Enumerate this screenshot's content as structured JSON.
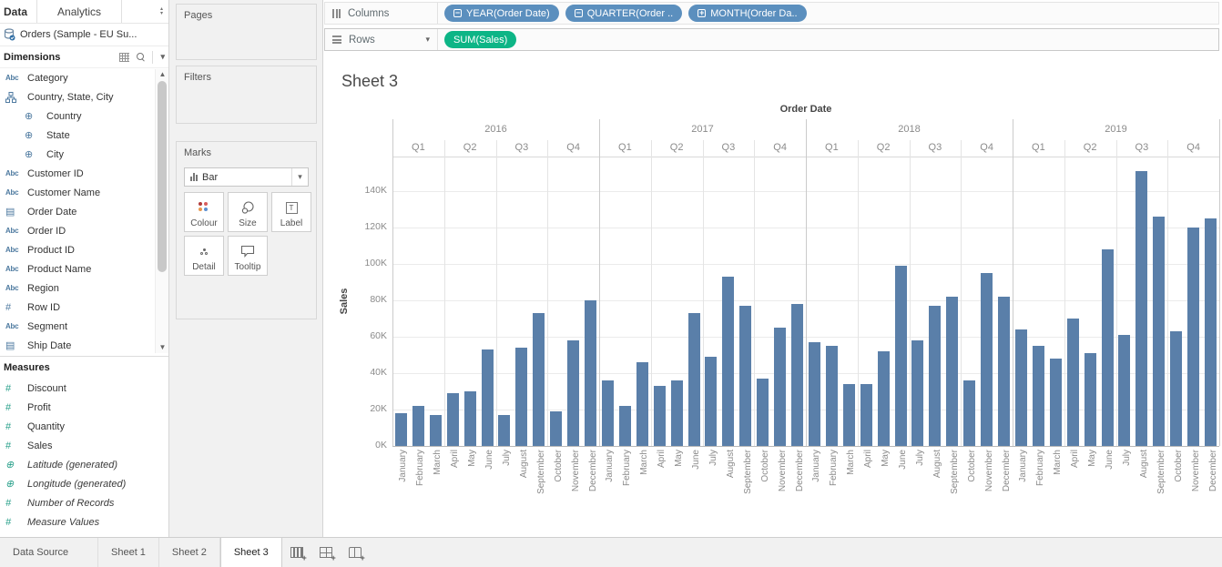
{
  "colors": {
    "bar": "#5a7fa9",
    "dimension_pill": "#5b8fbe",
    "measure_pill": "#0db586",
    "dimension_icon": "#4e7aa0",
    "measure_icon": "#28a08a"
  },
  "data_pane": {
    "tabs": {
      "data": "Data",
      "analytics": "Analytics"
    },
    "datasource": "Orders (Sample - EU Su...",
    "dimensions": {
      "header": "Dimensions",
      "items": [
        {
          "label": "Category",
          "icon": "abc",
          "indent": false,
          "italic": false
        },
        {
          "label": "Country, State, City",
          "icon": "hierarchy",
          "indent": false,
          "italic": false
        },
        {
          "label": "Country",
          "icon": "globe",
          "indent": true,
          "italic": false
        },
        {
          "label": "State",
          "icon": "globe",
          "indent": true,
          "italic": false
        },
        {
          "label": "City",
          "icon": "globe",
          "indent": true,
          "italic": false
        },
        {
          "label": "Customer ID",
          "icon": "abc",
          "indent": false,
          "italic": false
        },
        {
          "label": "Customer Name",
          "icon": "abc",
          "indent": false,
          "italic": false
        },
        {
          "label": "Order Date",
          "icon": "calendar",
          "indent": false,
          "italic": false
        },
        {
          "label": "Order ID",
          "icon": "abc",
          "indent": false,
          "italic": false
        },
        {
          "label": "Product ID",
          "icon": "abc",
          "indent": false,
          "italic": false
        },
        {
          "label": "Product Name",
          "icon": "abc",
          "indent": false,
          "italic": false
        },
        {
          "label": "Region",
          "icon": "abc",
          "indent": false,
          "italic": false
        },
        {
          "label": "Row ID",
          "icon": "number",
          "indent": false,
          "italic": false
        },
        {
          "label": "Segment",
          "icon": "abc",
          "indent": false,
          "italic": false
        },
        {
          "label": "Ship Date",
          "icon": "calendar",
          "indent": false,
          "italic": false
        }
      ]
    },
    "measures": {
      "header": "Measures",
      "items": [
        {
          "label": "Discount",
          "icon": "number",
          "italic": false
        },
        {
          "label": "Profit",
          "icon": "number",
          "italic": false
        },
        {
          "label": "Quantity",
          "icon": "number",
          "italic": false
        },
        {
          "label": "Sales",
          "icon": "number",
          "italic": false
        },
        {
          "label": "Latitude (generated)",
          "icon": "globe",
          "italic": true
        },
        {
          "label": "Longitude (generated)",
          "icon": "globe",
          "italic": true
        },
        {
          "label": "Number of Records",
          "icon": "number",
          "italic": true
        },
        {
          "label": "Measure Values",
          "icon": "number",
          "italic": true
        }
      ]
    }
  },
  "shelf_cards": {
    "pages_label": "Pages",
    "filters_label": "Filters",
    "marks": {
      "label": "Marks",
      "mark_type": "Bar",
      "buttons": [
        "Colour",
        "Size",
        "Label",
        "Detail",
        "Tooltip"
      ]
    }
  },
  "shelves": {
    "columns": {
      "label": "Columns",
      "pills": [
        {
          "label": "YEAR(Order Date)",
          "expand": "minus"
        },
        {
          "label": "QUARTER(Order ..",
          "expand": "minus"
        },
        {
          "label": "MONTH(Order Da..",
          "expand": "plus"
        }
      ]
    },
    "rows": {
      "label": "Rows",
      "pills": [
        {
          "label": "SUM(Sales)",
          "expand": null
        }
      ]
    }
  },
  "sheet": {
    "title": "Sheet 3"
  },
  "chart_data": {
    "type": "bar",
    "title": "Sheet 3",
    "col_header": "Order Date",
    "ylabel": "Sales",
    "unit": "K (thousands of Sales)",
    "ylim_k": [
      0,
      160
    ],
    "y_ticks": [
      "0K",
      "20K",
      "40K",
      "60K",
      "80K",
      "100K",
      "120K",
      "140K"
    ],
    "quarters": [
      "Q1",
      "Q2",
      "Q3",
      "Q4"
    ],
    "months": [
      "January",
      "February",
      "March",
      "April",
      "May",
      "June",
      "July",
      "August",
      "September",
      "October",
      "November",
      "December"
    ],
    "series": [
      {
        "year": "2016",
        "values_k": [
          18,
          22,
          17,
          29,
          30,
          53,
          17,
          54,
          73,
          19,
          58,
          80
        ]
      },
      {
        "year": "2017",
        "values_k": [
          36,
          22,
          46,
          33,
          36,
          73,
          49,
          93,
          77,
          37,
          65,
          78
        ]
      },
      {
        "year": "2018",
        "values_k": [
          57,
          55,
          34,
          34,
          52,
          99,
          58,
          77,
          82,
          36,
          95,
          82
        ]
      },
      {
        "year": "2019",
        "values_k": [
          64,
          55,
          48,
          70,
          51,
          108,
          61,
          151,
          126,
          63,
          120,
          125
        ]
      }
    ],
    "legend": "none",
    "grid": "horizontal"
  },
  "tabbar": {
    "tabs": [
      {
        "label": "Data Source",
        "active": false
      },
      {
        "label": "Sheet 1",
        "active": false
      },
      {
        "label": "Sheet 2",
        "active": false
      },
      {
        "label": "Sheet 3",
        "active": true
      }
    ]
  }
}
